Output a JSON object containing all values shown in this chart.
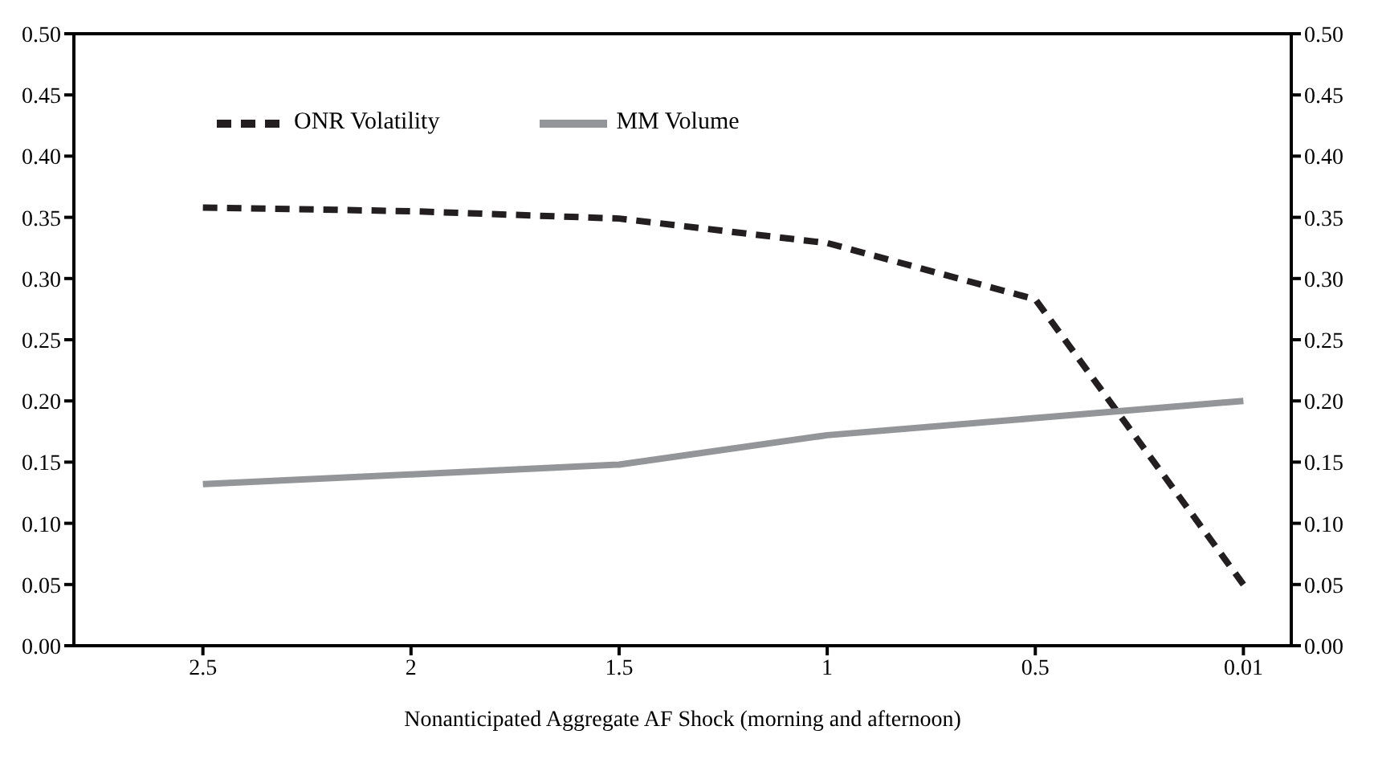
{
  "chart_data": {
    "type": "line",
    "xlabel": "Nonanticipated Aggregate AF Shock (morning and afternoon)",
    "categories": [
      "2.5",
      "2",
      "1.5",
      "1",
      "0.5",
      "0.01"
    ],
    "series": [
      {
        "name": "ONR Volatility",
        "color": "#231f20",
        "line_style": "dashed",
        "values": [
          0.358,
          0.355,
          0.349,
          0.329,
          0.283,
          0.05
        ]
      },
      {
        "name": "MM Volume",
        "color": "#939598",
        "line_style": "solid",
        "values": [
          0.132,
          0.14,
          0.148,
          0.172,
          0.186,
          0.2
        ]
      }
    ],
    "ylim": [
      0,
      0.5
    ],
    "yticks": [
      {
        "value": 0,
        "label": "0.00"
      },
      {
        "value": 0.05,
        "label": "0.05"
      },
      {
        "value": 0.1,
        "label": "0.10"
      },
      {
        "value": 0.15,
        "label": "0.15"
      },
      {
        "value": 0.2,
        "label": "0.20"
      },
      {
        "value": 0.25,
        "label": "0.25"
      },
      {
        "value": 0.3,
        "label": "0.30"
      },
      {
        "value": 0.35,
        "label": "0.35"
      },
      {
        "value": 0.4,
        "label": "0.40"
      },
      {
        "value": 0.45,
        "label": "0.45"
      },
      {
        "value": 0.5,
        "label": "0.50"
      }
    ],
    "y2lim": [
      0,
      0.5
    ],
    "y2ticks": [
      {
        "value": 0,
        "label": "0.00"
      },
      {
        "value": 0.05,
        "label": "0.05"
      },
      {
        "value": 0.1,
        "label": "0.10"
      },
      {
        "value": 0.15,
        "label": "0.15"
      },
      {
        "value": 0.2,
        "label": "0.20"
      },
      {
        "value": 0.25,
        "label": "0.25"
      },
      {
        "value": 0.3,
        "label": "0.30"
      },
      {
        "value": 0.35,
        "label": "0.35"
      },
      {
        "value": 0.4,
        "label": "0.40"
      },
      {
        "value": 0.45,
        "label": "0.45"
      },
      {
        "value": 0.5,
        "label": "0.50"
      }
    ],
    "legend": "top left",
    "marker": "none",
    "grid": false
  }
}
